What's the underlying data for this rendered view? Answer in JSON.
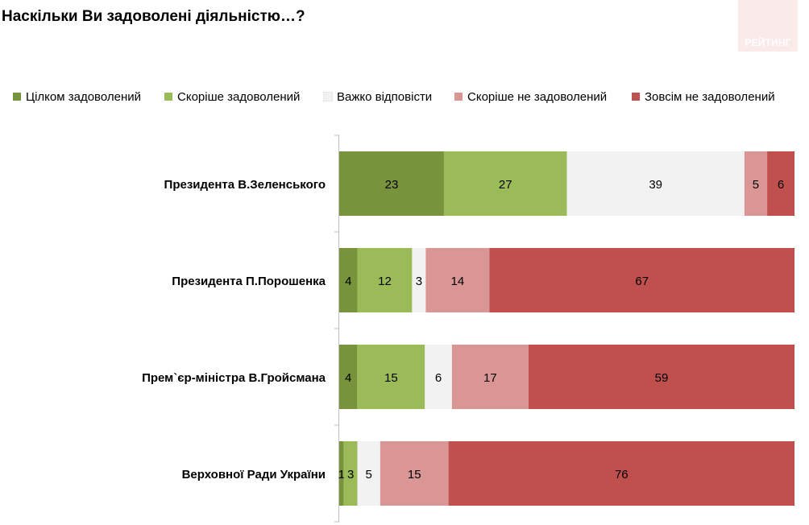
{
  "header": {
    "title": "Наскільки Ви задоволені діяльністю…?"
  },
  "brand": {
    "label": "РЕЙТИНГ"
  },
  "chart_data": {
    "type": "bar",
    "orientation": "horizontal",
    "stacked": true,
    "categories": [
      "Президента В.Зеленського",
      "Президента П.Порошенка",
      "Прем`єр-міністра В.Гройсмана",
      "Верховної Ради України"
    ],
    "series": [
      {
        "name": "Цілком задоволений",
        "color": "#77933c",
        "values": [
          23,
          4,
          4,
          1
        ]
      },
      {
        "name": "Скоріше задоволений",
        "color": "#9bbb59",
        "values": [
          27,
          12,
          15,
          3
        ]
      },
      {
        "name": "Важко відповісти",
        "color": "#f2f2f2",
        "values": [
          39,
          3,
          6,
          5
        ]
      },
      {
        "name": "Скоріше не задоволений",
        "color": "#d99694",
        "values": [
          5,
          14,
          17,
          15
        ]
      },
      {
        "name": "Зовсім не задоволений",
        "color": "#c0504d",
        "values": [
          6,
          67,
          59,
          76
        ]
      }
    ],
    "legend_position": "top",
    "grid": false
  }
}
